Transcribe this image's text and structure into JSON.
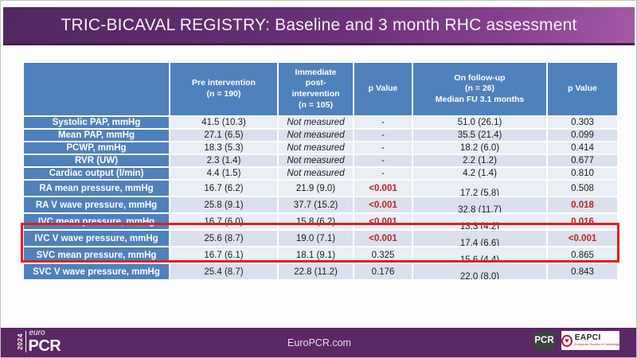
{
  "title": "TRIC-BICAVAL REGISTRY: Baseline and 3 month RHC assessment",
  "colors": {
    "header_blue": "#4f81bd",
    "row_band_light": "#eaeef5",
    "row_band_dark": "#dae0ed",
    "significant_red": "#c42121",
    "highlight_box_red": "#dd2020",
    "purple_bar": "#5b2765"
  },
  "table": {
    "columns": [
      {
        "label": ""
      },
      {
        "label": "Pre intervention\n(n = 190)"
      },
      {
        "label": "Immediate\npost-\nintervention\n(n = 105)"
      },
      {
        "label": "p Value"
      },
      {
        "label": "On follow-up\n(n = 26)\nMedian FU 3.1 months"
      },
      {
        "label": "p Value"
      }
    ],
    "rows": [
      {
        "label": "Systolic PAP, mmHg",
        "pre": "41.5 (10.3)",
        "post": "Not measured",
        "p1": "-",
        "p1_red": false,
        "fu": "51.0 (26.1)",
        "p2": "0.303",
        "p2_red": false
      },
      {
        "label": "Mean PAP, mmHg",
        "pre": "27.1 (6.5)",
        "post": "Not measured",
        "p1": "-",
        "p1_red": false,
        "fu": "35.5 (21.4)",
        "p2": "0.099",
        "p2_red": false
      },
      {
        "label": "PCWP, mmHg",
        "pre": "18.3 (5.3)",
        "post": "Not measured",
        "p1": "-",
        "p1_red": false,
        "fu": "18.2 (6.0)",
        "p2": "0.414",
        "p2_red": false
      },
      {
        "label": "RVR (UW)",
        "pre": "2.3 (1.4)",
        "post": "Not measured",
        "p1": "-",
        "p1_red": false,
        "fu": "2.2 (1.2)",
        "p2": "0.677",
        "p2_red": false
      },
      {
        "label": "Cardiac output (l/min)",
        "pre": "4.4 (1.5)",
        "post": "Not measured",
        "p1": "-",
        "p1_red": false,
        "fu": "4.2 (1.4)",
        "p2": "0.810",
        "p2_red": false
      },
      {
        "label": "RA mean pressure, mmHg",
        "pre": "16.7 (6.2)",
        "post": "21.9 (9.0)",
        "p1": "<0.001",
        "p1_red": true,
        "fu": "17.2 (5.8)",
        "p2": "0.508",
        "p2_red": false
      },
      {
        "label": "RA V wave pressure, mmHg",
        "pre": "25.8 (9.1)",
        "post": "37.7 (15.2)",
        "p1": "<0.001",
        "p1_red": true,
        "fu": "32.8 (11.7)",
        "p2": "0.018",
        "p2_red": true
      },
      {
        "label": "IVC mean pressure, mmHg",
        "pre": "16.7 (6.0)",
        "post": "15.8 (6.2)",
        "p1": "<0.001",
        "p1_red": true,
        "fu": "13.3 (4.2)",
        "p2": "0.016",
        "p2_red": true
      },
      {
        "label": "IVC V wave pressure, mmHg",
        "pre": "25.6 (8.7)",
        "post": "19.0 (7.1)",
        "p1": "<0.001",
        "p1_red": true,
        "fu": "17.4 (6.6)",
        "p2": "<0.001",
        "p2_red": true
      },
      {
        "label": "SVC mean pressure, mmHg",
        "pre": "16.7 (6.1)",
        "post": "18.1 (9.1)",
        "p1": "0.325",
        "p1_red": false,
        "fu": "15.6 (4.4)",
        "p2": "0.865",
        "p2_red": false
      },
      {
        "label": "SVC V wave pressure, mmHg",
        "pre": "25.4 (8.7)",
        "post": "22.8 (11.2)",
        "p1": "0.176",
        "p1_red": false,
        "fu": "22.0 (8.0)",
        "p2": "0.843",
        "p2_red": false
      }
    ],
    "not_measured_text": "Not measured"
  },
  "highlight": {
    "rows": [
      "IVC mean pressure, mmHg",
      "IVC V wave pressure, mmHg"
    ]
  },
  "footer": {
    "url": "EuroPCR.com",
    "logo_left": {
      "year": "2024",
      "euro": "euro",
      "pcr": "PCR"
    },
    "logo_pcr": "PCR",
    "logo_eapci": {
      "name": "EAPCI",
      "heart_icon": "heart-icon",
      "tagline": "European Society of Cardiology"
    }
  }
}
